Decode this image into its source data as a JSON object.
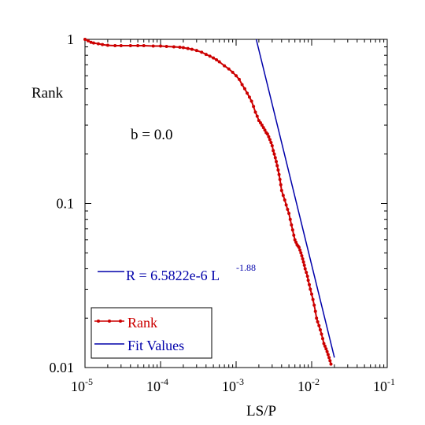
{
  "chart_data": {
    "type": "line",
    "xlabel": "LS/P",
    "ylabel": "Rank",
    "xscale": "log",
    "yscale": "log",
    "xlim": [
      1e-05,
      0.1
    ],
    "ylim": [
      0.01,
      1
    ],
    "x_ticks": [
      {
        "value": 1e-05,
        "base": "10",
        "exp": "-5"
      },
      {
        "value": 0.0001,
        "base": "10",
        "exp": "-4"
      },
      {
        "value": 0.001,
        "base": "10",
        "exp": "-3"
      },
      {
        "value": 0.01,
        "base": "10",
        "exp": "-2"
      },
      {
        "value": 0.1,
        "base": "10",
        "exp": "-1"
      }
    ],
    "y_ticks": [
      {
        "value": 0.01,
        "label": "0.01"
      },
      {
        "value": 0.1,
        "label": "0.1"
      },
      {
        "value": 1,
        "label": "1"
      }
    ],
    "annotations": {
      "b_text": "b = 0.0",
      "fit_text": "R = 6.5822e-6 L",
      "fit_exp": "-1.88"
    },
    "legend": {
      "position": "bottom-left",
      "entries": [
        "Rank",
        "Fit Values"
      ]
    },
    "colors": {
      "rank": "#cc0000",
      "fit": "#0000aa",
      "axis": "#000000"
    },
    "series": [
      {
        "name": "Rank",
        "style": "line-markers",
        "x": [
          1e-05,
          1.1e-05,
          1.2e-05,
          1.3e-05,
          1.5e-05,
          1.7e-05,
          2e-05,
          2.5e-05,
          3e-05,
          4e-05,
          5e-05,
          6e-05,
          8e-05,
          0.0001,
          0.00012,
          0.00015,
          0.00018,
          0.0002,
          0.00023,
          0.00026,
          0.0003,
          0.00035,
          0.0004,
          0.00045,
          0.0005,
          0.00055,
          0.0006,
          0.0007,
          0.0008,
          0.0009,
          0.001,
          0.0011,
          0.0012,
          0.0013,
          0.0014,
          0.0015,
          0.0016,
          0.0017,
          0.0018,
          0.0019,
          0.002,
          0.0021,
          0.0022,
          0.0023,
          0.0024,
          0.0025,
          0.0026,
          0.0027,
          0.0028,
          0.0029,
          0.003,
          0.0031,
          0.0032,
          0.0033,
          0.0034,
          0.0035,
          0.0036,
          0.0037,
          0.0038,
          0.0039,
          0.004,
          0.0042,
          0.0044,
          0.0046,
          0.0048,
          0.005,
          0.0052,
          0.0054,
          0.0056,
          0.0058,
          0.006,
          0.0062,
          0.0064,
          0.0066,
          0.0068,
          0.007,
          0.0072,
          0.0074,
          0.0076,
          0.0078,
          0.008,
          0.0082,
          0.0085,
          0.0088,
          0.009,
          0.0093,
          0.0096,
          0.01,
          0.0104,
          0.0108,
          0.0112,
          0.0116,
          0.012,
          0.0125,
          0.013,
          0.0135,
          0.014,
          0.0145,
          0.015,
          0.0155,
          0.016,
          0.0165,
          0.017,
          0.0175,
          0.018
        ],
        "y": [
          1.0,
          0.98,
          0.96,
          0.95,
          0.94,
          0.93,
          0.92,
          0.915,
          0.915,
          0.915,
          0.915,
          0.915,
          0.91,
          0.91,
          0.905,
          0.9,
          0.895,
          0.89,
          0.88,
          0.87,
          0.855,
          0.835,
          0.81,
          0.79,
          0.77,
          0.75,
          0.73,
          0.69,
          0.66,
          0.63,
          0.6,
          0.57,
          0.53,
          0.5,
          0.47,
          0.445,
          0.42,
          0.39,
          0.36,
          0.34,
          0.32,
          0.31,
          0.3,
          0.29,
          0.28,
          0.27,
          0.265,
          0.255,
          0.245,
          0.235,
          0.225,
          0.21,
          0.2,
          0.19,
          0.18,
          0.17,
          0.16,
          0.15,
          0.14,
          0.13,
          0.12,
          0.112,
          0.105,
          0.098,
          0.092,
          0.087,
          0.08,
          0.074,
          0.069,
          0.064,
          0.06,
          0.058,
          0.056,
          0.055,
          0.054,
          0.052,
          0.05,
          0.048,
          0.046,
          0.044,
          0.042,
          0.04,
          0.038,
          0.036,
          0.034,
          0.032,
          0.03,
          0.028,
          0.026,
          0.024,
          0.022,
          0.02,
          0.019,
          0.018,
          0.017,
          0.016,
          0.015,
          0.014,
          0.0135,
          0.013,
          0.0125,
          0.012,
          0.0115,
          0.011,
          0.0105
        ]
      },
      {
        "name": "Fit Values",
        "style": "line",
        "x": [
          0.00185,
          0.02
        ],
        "y": [
          1.0,
          0.0115
        ]
      }
    ]
  }
}
